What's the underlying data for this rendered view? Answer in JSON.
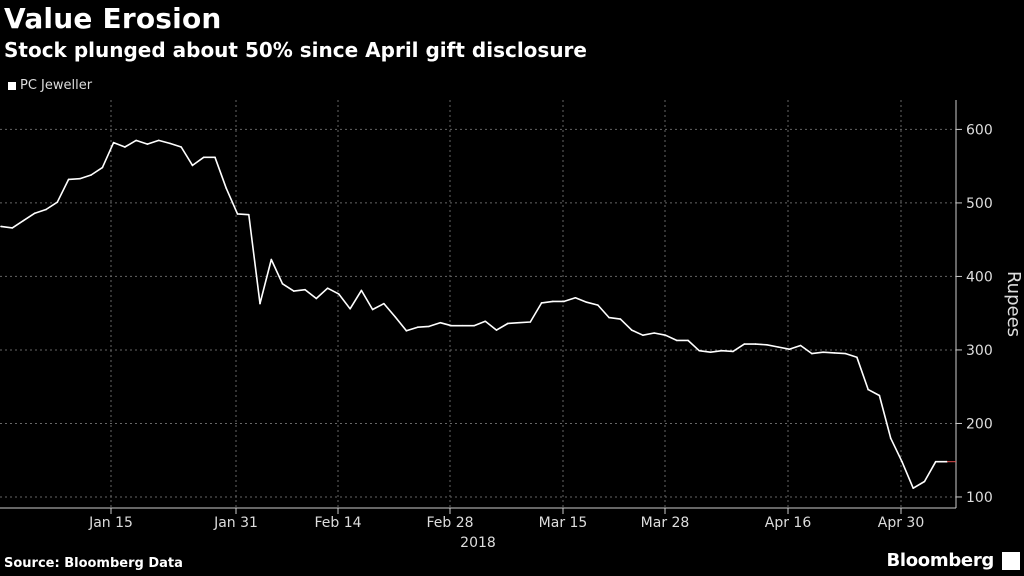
{
  "title": "Value Erosion",
  "subtitle": "Stock plunged about 50% since April gift disclosure",
  "legend_label": "PC Jeweller",
  "source": "Source: Bloomberg Data",
  "brand": "Bloomberg",
  "colors": {
    "background": "#000000",
    "line": "#ffffff",
    "grid": "#666666",
    "last_price_marker": "#e05050"
  },
  "chart_data": {
    "type": "line",
    "title": "Value Erosion",
    "subtitle": "Stock plunged about 50% since April gift disclosure",
    "ylabel": "Rupees",
    "xlabel": "",
    "year_label": "2018",
    "y_ticks": [
      100,
      200,
      300,
      400,
      500,
      600
    ],
    "ylim": [
      85,
      640
    ],
    "grid": true,
    "legend_position": "top-left",
    "x_ticks": [
      "Jan 15",
      "Jan 31",
      "Feb 14",
      "Feb 28",
      "Mar 15",
      "Mar 28",
      "Apr 16",
      "Apr 30"
    ],
    "series": [
      {
        "name": "PC Jeweller",
        "values": [
          468,
          466,
          476,
          486,
          491,
          501,
          532,
          533,
          538,
          548,
          582,
          576,
          585,
          580,
          585,
          581,
          576,
          551,
          562,
          562,
          520,
          485,
          484,
          363,
          423,
          390,
          380,
          382,
          370,
          384,
          376,
          356,
          381,
          355,
          363,
          345,
          326,
          331,
          332,
          337,
          333,
          333,
          333,
          339,
          327,
          336,
          337,
          338,
          364,
          366,
          366,
          371,
          365,
          361,
          344,
          342,
          327,
          320,
          323,
          320,
          313,
          313,
          299,
          297,
          299,
          298,
          308,
          308,
          307,
          304,
          301,
          306,
          295,
          297,
          296,
          295,
          290,
          246,
          238,
          180,
          148,
          112,
          121,
          148,
          148
        ]
      }
    ]
  }
}
